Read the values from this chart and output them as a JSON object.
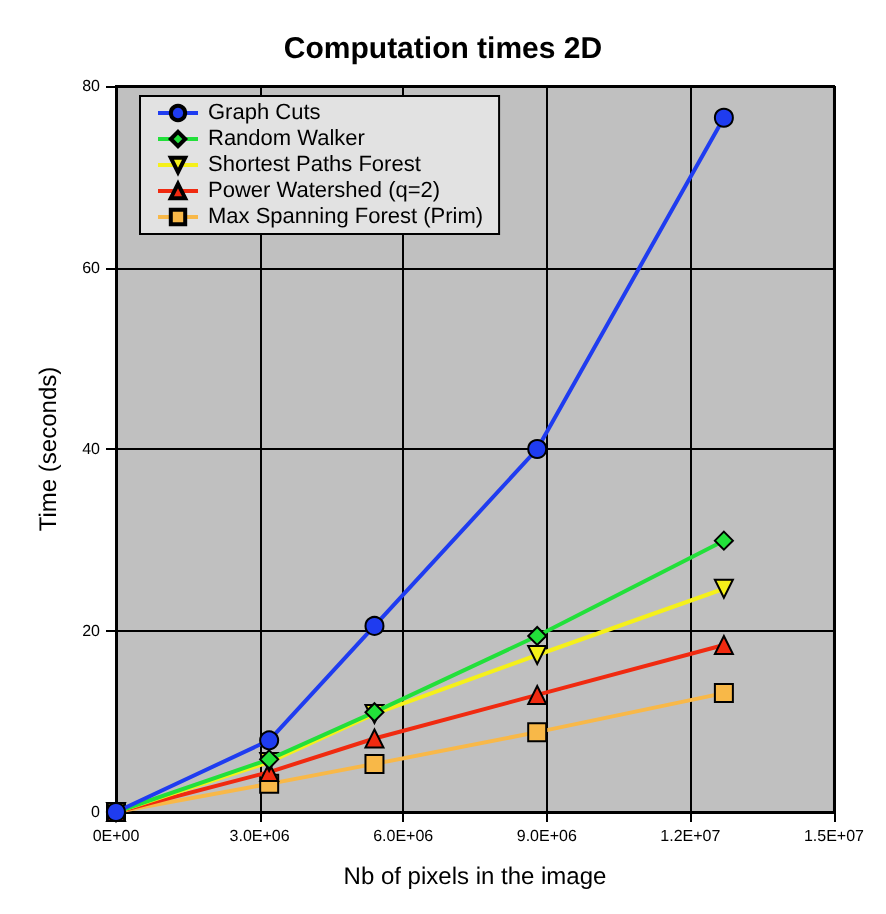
{
  "chart_data": {
    "type": "line",
    "title": "Computation times 2D",
    "xlabel": "Nb of pixels in the image",
    "ylabel": "Time (seconds)",
    "x": [
      0,
      3200000,
      5400000,
      8800000,
      12700000
    ],
    "series": [
      {
        "name": "Graph Cuts",
        "color": "#1f3cf0",
        "marker": "circle",
        "values": [
          0,
          7.9,
          20.5,
          40,
          76.5
        ]
      },
      {
        "name": "Random Walker",
        "color": "#22e03a",
        "marker": "diamond",
        "values": [
          0,
          5.8,
          11,
          19.4,
          29.9
        ]
      },
      {
        "name": "Shortest Paths Forest",
        "color": "#f5f01a",
        "marker": "triangle-down",
        "values": [
          0,
          5.5,
          10.8,
          17.3,
          24.6
        ]
      },
      {
        "name": "Power Watershed (q=2)",
        "color": "#f02a10",
        "marker": "triangle",
        "values": [
          0,
          4.4,
          8.1,
          12.9,
          18.4
        ]
      },
      {
        "name": "Max Spanning Forest (Prim)",
        "color": "#f8b848",
        "marker": "square",
        "values": [
          0,
          3.1,
          5.3,
          8.8,
          13.1
        ]
      }
    ],
    "xlim": [
      0,
      15000000
    ],
    "xticks": [
      {
        "value": 0,
        "label": "0E+00"
      },
      {
        "value": 3000000,
        "label": "3.0E+06"
      },
      {
        "value": 6000000,
        "label": "6.0E+06"
      },
      {
        "value": 9000000,
        "label": "9.0E+06"
      },
      {
        "value": 12000000,
        "label": "1.2E+07"
      },
      {
        "value": 15000000,
        "label": "1.5E+07"
      }
    ],
    "ylim": [
      0,
      80
    ],
    "yticks": [
      0,
      20,
      40,
      60,
      80
    ],
    "grid": true,
    "legend": "top left"
  }
}
